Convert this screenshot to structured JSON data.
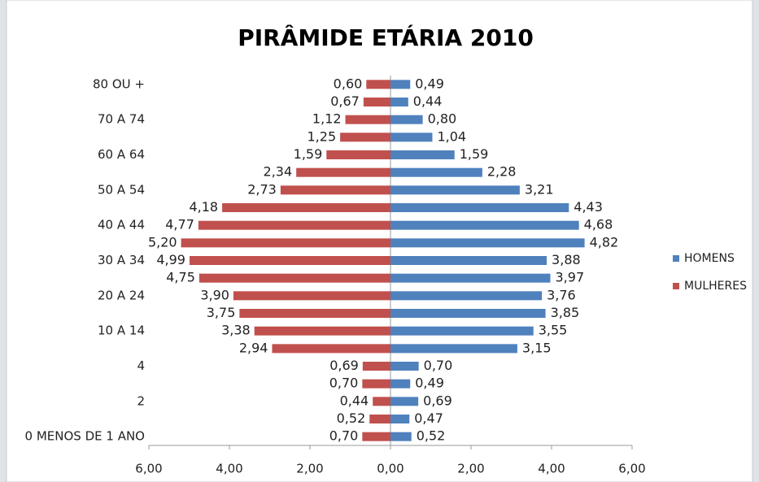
{
  "chart_data": {
    "type": "pyramid",
    "title": "PIRÂMIDE ETÁRIA 2010",
    "categories": [
      "80 OU +",
      null,
      "70 A 74",
      null,
      "60 A 64",
      null,
      "50 A 54",
      null,
      "40 A 44",
      null,
      "30 A 34",
      null,
      "20 A 24",
      null,
      "10 A 14",
      null,
      "4",
      null,
      "2",
      null,
      "0 MENOS DE 1 ANO"
    ],
    "series": [
      {
        "name": "HOMENS",
        "color": "#4f81bd",
        "values": [
          0.49,
          0.44,
          0.8,
          1.04,
          1.59,
          2.28,
          3.21,
          4.43,
          4.68,
          4.82,
          3.88,
          3.97,
          3.76,
          3.85,
          3.55,
          3.15,
          0.7,
          0.49,
          0.69,
          0.47,
          0.52
        ],
        "value_labels": [
          "0,49",
          "0,44",
          "0,80",
          "1,04",
          "1,59",
          "2,28",
          "3,21",
          "4,43",
          "4,68",
          "4,82",
          "3,88",
          "3,97",
          "3,76",
          "3,85",
          "3,55",
          "3,15",
          "0,70",
          "0,49",
          "0,69",
          "0,47",
          "0,52"
        ]
      },
      {
        "name": "MULHERES",
        "color": "#c0504d",
        "values": [
          -0.6,
          -0.67,
          -1.12,
          -1.25,
          -1.59,
          -2.34,
          -2.73,
          -4.18,
          -4.77,
          -5.2,
          -4.99,
          -4.75,
          -3.9,
          -3.75,
          -3.38,
          -2.94,
          -0.69,
          -0.7,
          -0.44,
          -0.52,
          -0.7
        ],
        "value_labels": [
          "0,60",
          "0,67",
          "1,12",
          "1,25",
          "1,59",
          "2,34",
          "2,73",
          "4,18",
          "4,77",
          "5,20",
          "4,99",
          "4,75",
          "3,90",
          "3,75",
          "3,38",
          "2,94",
          "0,69",
          "0,70",
          "0,44",
          "0,52",
          "0,70"
        ]
      }
    ],
    "xlim": [
      -6,
      6
    ],
    "xticks": [
      {
        "value": -6,
        "label": "6,00"
      },
      {
        "value": -4,
        "label": "4,00"
      },
      {
        "value": -2,
        "label": "2,00"
      },
      {
        "value": 0,
        "label": "0,00"
      },
      {
        "value": 2,
        "label": "2,00"
      },
      {
        "value": 4,
        "label": "4,00"
      },
      {
        "value": 6,
        "label": "6,00"
      }
    ],
    "legend": "right",
    "grid": false
  }
}
